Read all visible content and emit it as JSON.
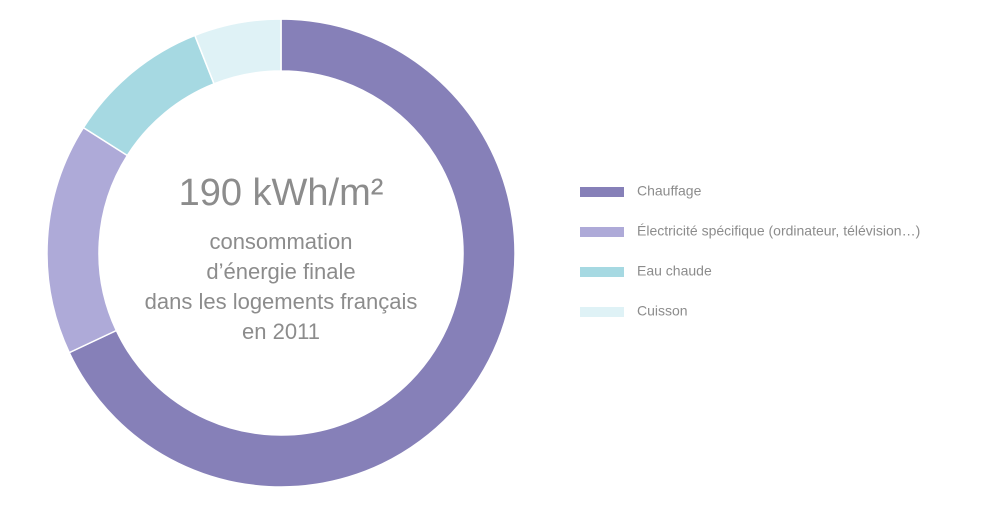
{
  "chart_data": {
    "type": "pie",
    "donut": true,
    "center_title": "190 kWh/m²",
    "center_lines": [
      "consommation",
      "d’énergie finale",
      "dans les logements français",
      "en 2011"
    ],
    "categories": [
      "Chauffage",
      "Électricité spécifique (ordinateur, télévision…)",
      "Eau chaude",
      "Cuisson"
    ],
    "values": [
      68,
      16,
      10,
      6
    ],
    "colors": [
      "#8680b8",
      "#aeaad8",
      "#a6d9e2",
      "#dff2f6"
    ],
    "legend": "right"
  }
}
